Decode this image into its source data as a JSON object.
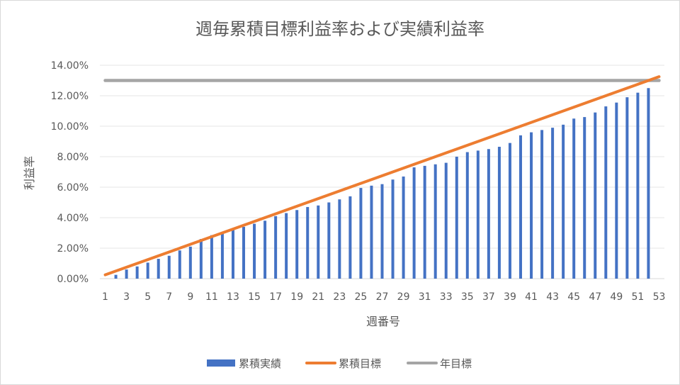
{
  "chart_data": {
    "type": "bar",
    "title": "週毎累積目標利益率および実績利益率",
    "xlabel": "週番号",
    "ylabel": "利益率",
    "ylim": [
      0,
      0.14
    ],
    "y_ticks": [
      "0.00%",
      "2.00%",
      "4.00%",
      "6.00%",
      "8.00%",
      "10.00%",
      "12.00%",
      "14.00%"
    ],
    "grid": true,
    "legend_position": "bottom",
    "x": [
      1,
      2,
      3,
      4,
      5,
      6,
      7,
      8,
      9,
      10,
      11,
      12,
      13,
      14,
      15,
      16,
      17,
      18,
      19,
      20,
      21,
      22,
      23,
      24,
      25,
      26,
      27,
      28,
      29,
      30,
      31,
      32,
      33,
      34,
      35,
      36,
      37,
      38,
      39,
      40,
      41,
      42,
      43,
      44,
      45,
      46,
      47,
      48,
      49,
      50,
      51,
      52,
      53
    ],
    "x_tick_labels": [
      "1",
      "3",
      "5",
      "7",
      "9",
      "11",
      "13",
      "15",
      "17",
      "19",
      "21",
      "23",
      "25",
      "27",
      "29",
      "31",
      "33",
      "35",
      "37",
      "39",
      "41",
      "43",
      "45",
      "47",
      "49",
      "51",
      "53"
    ],
    "series": [
      {
        "name": "累積実績",
        "kind": "bar",
        "color": "#4472c4",
        "values": [
          0.0,
          0.0025,
          0.006,
          0.008,
          0.0105,
          0.013,
          0.015,
          0.0185,
          0.021,
          0.026,
          0.0285,
          0.03,
          0.032,
          0.034,
          0.036,
          0.038,
          0.041,
          0.043,
          0.045,
          0.047,
          0.048,
          0.05,
          0.052,
          0.054,
          0.0595,
          0.061,
          0.062,
          0.065,
          0.067,
          0.073,
          0.074,
          0.075,
          0.076,
          0.08,
          0.083,
          0.084,
          0.085,
          0.0865,
          0.089,
          0.094,
          0.096,
          0.0975,
          0.099,
          0.101,
          0.105,
          0.106,
          0.109,
          0.113,
          0.1155,
          0.119,
          0.122,
          0.125,
          0.0
        ]
      },
      {
        "name": "累積目標",
        "kind": "line",
        "color": "#ed7d31",
        "start": 0.0025,
        "end": 0.1325
      },
      {
        "name": "年目標",
        "kind": "line",
        "color": "#a5a5a5",
        "value": 0.13
      }
    ]
  }
}
